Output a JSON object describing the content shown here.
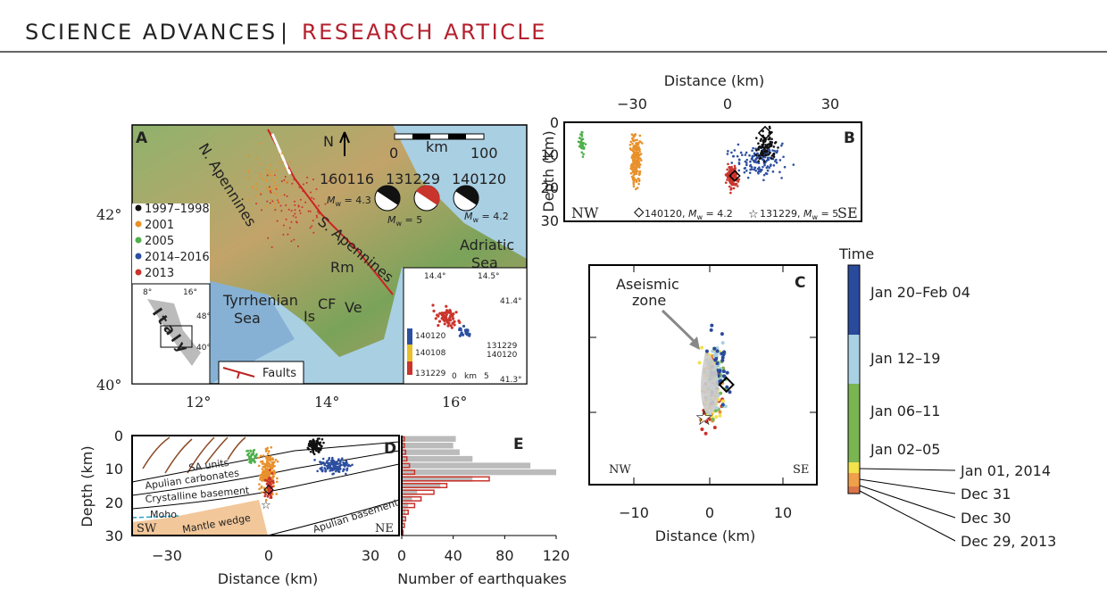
{
  "header": {
    "journal": "SCIENCE ADVANCES",
    "separator": "|",
    "section": "RESEARCH ARTICLE"
  },
  "panel_a": {
    "label": "A",
    "north": "N",
    "scale": {
      "zero": "0",
      "unit": "km",
      "end": "100"
    },
    "regions": {
      "n_apennines": "N. Apennines",
      "s_apennines": "S. Apennines",
      "tyrrhenian": [
        "Tyrrhenian",
        "Sea"
      ],
      "adriatic": [
        "Adriatic",
        "Sea"
      ],
      "rm": "Rm",
      "is": "Is",
      "cf": "CF",
      "ve": "Ve"
    },
    "inset": {
      "name": "Italy",
      "ticks": [
        "8°",
        "16°",
        "48°",
        "40°"
      ]
    },
    "mechanisms": [
      {
        "id": "160116",
        "symbol": "M",
        "sub": "w",
        "value": " = 4.3"
      },
      {
        "id": "131229",
        "symbol": "M",
        "sub": "w",
        "value": " = 5"
      },
      {
        "id": "140120",
        "symbol": "M",
        "sub": "w",
        "value": " = 4.2"
      }
    ],
    "legend": [
      "1997–1998",
      "2001",
      "2005",
      "2014–2016",
      "2013"
    ],
    "faults": "Faults",
    "lat_ticks": [
      "42°",
      "40°"
    ],
    "lon_ticks": [
      "12°",
      "14°",
      "16°"
    ],
    "zoom": {
      "ticks": [
        "14.4°",
        "14.5°",
        "41.4°",
        "41.3°"
      ],
      "colorbar": [
        "140120",
        "140108",
        "131229"
      ],
      "legend": [
        "131229",
        "140120"
      ],
      "scale": [
        "0",
        "km",
        "5"
      ]
    }
  },
  "panel_b": {
    "label": "B",
    "xlabel": "Distance (km)",
    "xticks": [
      "−30",
      "0",
      "30"
    ],
    "ylabel": "Depth (km)",
    "yticks": [
      "0",
      "10",
      "20",
      "30"
    ],
    "corners": [
      "NW",
      "SE"
    ],
    "legend": [
      {
        "id": "140120, ",
        "symbol": "M",
        "sub": "w",
        "value": " = 4.2"
      },
      {
        "id": "131229, ",
        "symbol": "M",
        "sub": "w",
        "value": " = 5"
      }
    ]
  },
  "panel_c": {
    "label": "C",
    "annotation": [
      "Aseismic",
      "zone"
    ],
    "corners": [
      "NW",
      "SE"
    ],
    "xticks": [
      "−10",
      "0",
      "10"
    ],
    "xlabel": "Distance (km)",
    "colorbar": {
      "title": "Time",
      "labels": [
        "Jan 20–Feb 04",
        "Jan 12–19",
        "Jan 06–11",
        "Jan 02–05",
        "Jan 01, 2014",
        "Dec 31",
        "Dec 30",
        "Dec 29, 2013"
      ]
    }
  },
  "panel_d": {
    "label": "D",
    "units": [
      "SA units",
      "Apulian carbonates",
      "Crystalline basement",
      "Moho",
      "Mantle wedge",
      "Apulian basement"
    ],
    "corners": [
      "SW",
      "NE"
    ],
    "xticks": [
      "−30",
      "0",
      "30"
    ],
    "xlabel": "Distance (km)",
    "ylabel": "Depth (km)",
    "yticks": [
      "0",
      "10",
      "20",
      "30"
    ]
  },
  "panel_e": {
    "label": "E",
    "xlabel": "Number of earthquakes",
    "xlim": [
      0,
      120
    ],
    "xticks": [
      0,
      40,
      80,
      120
    ],
    "ylim": [
      0,
      30
    ],
    "bins": [
      0,
      2,
      4,
      6,
      8,
      10,
      12,
      14,
      16,
      18,
      20,
      22,
      24,
      26,
      28,
      30
    ],
    "counts_all": [
      42,
      40,
      45,
      55,
      100,
      120,
      55,
      30,
      12,
      8,
      5,
      3,
      2,
      1,
      1
    ],
    "counts_2013": [
      2,
      2,
      3,
      4,
      6,
      10,
      68,
      35,
      25,
      15,
      10,
      5,
      3,
      2,
      1
    ]
  }
}
